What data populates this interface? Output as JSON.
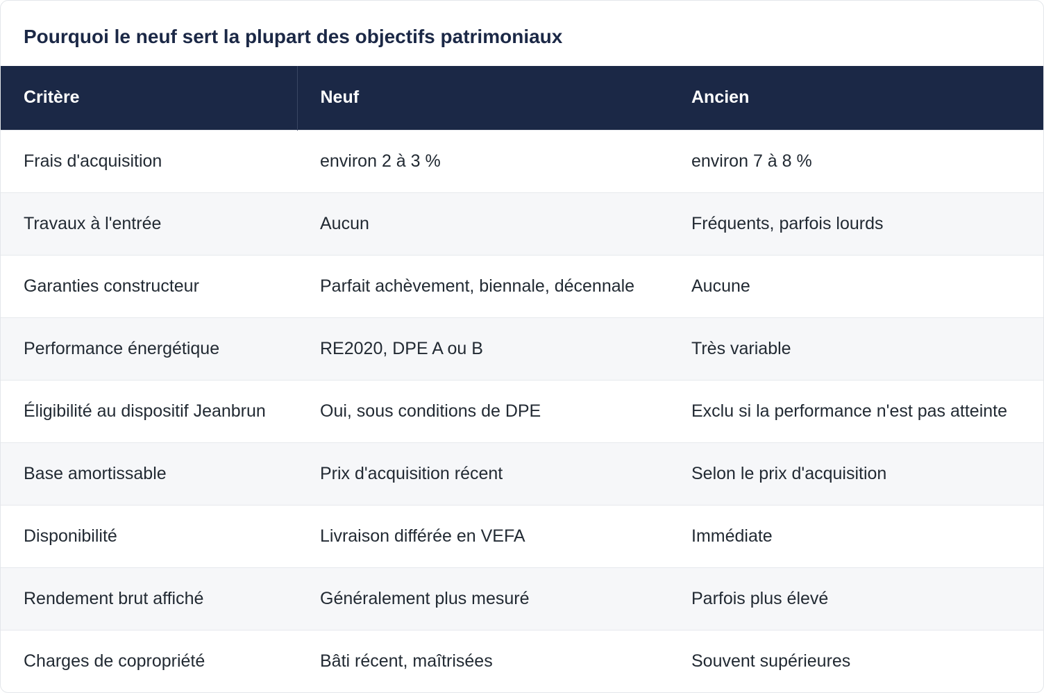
{
  "title": "Pourquoi le neuf sert la plupart des objectifs patrimoniaux",
  "headers": [
    "Critère",
    "Neuf",
    "Ancien"
  ],
  "rows": [
    [
      "Frais d'acquisition",
      "environ 2 à 3 %",
      "environ 7 à 8 %"
    ],
    [
      "Travaux à l'entrée",
      "Aucun",
      "Fréquents, parfois lourds"
    ],
    [
      "Garanties constructeur",
      "Parfait achèvement, biennale, décennale",
      "Aucune"
    ],
    [
      "Performance énergétique",
      "RE2020, DPE A ou B",
      "Très variable"
    ],
    [
      "Éligibilité au dispositif Jeanbrun",
      "Oui, sous conditions de DPE",
      "Exclu si la performance n'est pas atteinte"
    ],
    [
      "Base amortissable",
      "Prix d'acquisition récent",
      "Selon le prix d'acquisition"
    ],
    [
      "Disponibilité",
      "Livraison différée en VEFA",
      "Immédiate"
    ],
    [
      "Rendement brut affiché",
      "Généralement plus mesuré",
      "Parfois plus élevé"
    ],
    [
      "Charges de copropriété",
      "Bâti récent, maîtrisées",
      "Souvent supérieures"
    ]
  ],
  "colors": {
    "header_bg": "#1b2846",
    "title_text": "#1b2846",
    "zebra_row": "#f6f7f9"
  }
}
